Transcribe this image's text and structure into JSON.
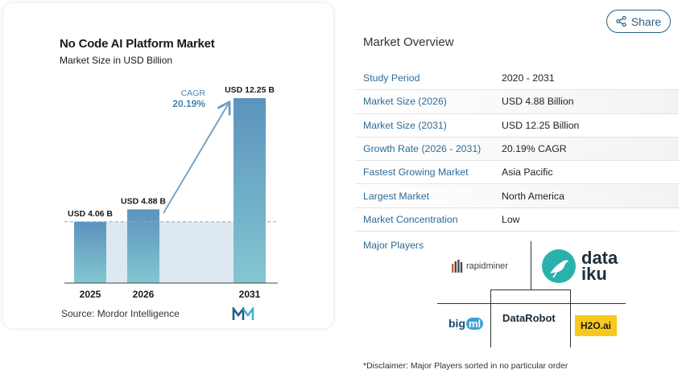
{
  "chart": {
    "title": "No Code AI Platform Market",
    "subtitle": "Market Size in USD Billion",
    "cagr_label": "CAGR",
    "cagr_value": "20.19%",
    "source": "Source: Mordor Intelligence",
    "colors": {
      "bar_top": "#5b93bd",
      "bar_bottom": "#84c6d1",
      "shade": "#dde8f1",
      "arrow": "#6a9dc2"
    }
  },
  "chart_data": {
    "type": "bar",
    "categories": [
      "2025",
      "2026",
      "2031"
    ],
    "values": [
      4.06,
      4.88,
      12.25
    ],
    "data_labels": [
      "USD 4.06 B",
      "USD 4.88 B",
      "USD 12.25 B"
    ],
    "title": "No Code AI Platform Market",
    "subtitle": "Market Size in USD Billion",
    "xlabel": "",
    "ylabel": "",
    "ylim": [
      0,
      12.25
    ],
    "annotation": {
      "text": "CAGR",
      "value": "20.19%"
    }
  },
  "share": {
    "label": "Share",
    "icon": "share-icon"
  },
  "overview": {
    "title": "Market Overview",
    "rows": [
      {
        "label": "Study Period",
        "value": "2020 - 2031"
      },
      {
        "label": "Market Size (2026)",
        "value": "USD 4.88 Billion"
      },
      {
        "label": "Market Size (2031)",
        "value": "USD 12.25 Billion"
      },
      {
        "label": "Growth Rate (2026 - 2031)",
        "value": "20.19% CAGR"
      },
      {
        "label": "Fastest Growing Market",
        "value": "Asia Pacific"
      },
      {
        "label": "Largest Market",
        "value": "North America"
      },
      {
        "label": "Market Concentration",
        "value": "Low"
      }
    ],
    "players_label": "Major Players",
    "players": {
      "rapidminer": "rapidminer",
      "dataiku_1": "data",
      "dataiku_2": "iku",
      "bigml_1": "big",
      "bigml_2": "ml",
      "datarobot": "DataRobot",
      "h2o": "H2O.ai"
    },
    "disclaimer": "*Disclaimer: Major Players sorted in no particular order"
  }
}
